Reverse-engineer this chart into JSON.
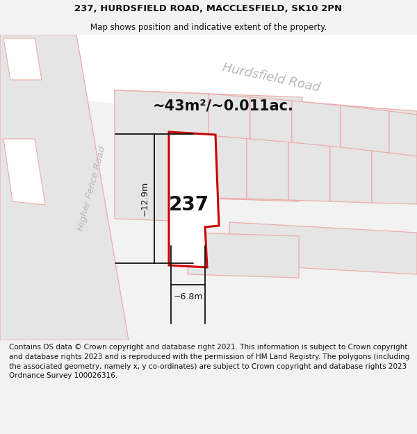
{
  "title_line1": "237, HURDSFIELD ROAD, MACCLESFIELD, SK10 2PN",
  "title_line2": "Map shows position and indicative extent of the property.",
  "area_text": "~43m²/~0.011ac.",
  "property_number": "237",
  "dim_height": "~12.9m",
  "dim_width": "~6.8m",
  "road_label1": "Hurdsfield Road",
  "road_label2": "Higher Fence Road",
  "footer_text": "Contains OS data © Crown copyright and database right 2021. This information is subject to Crown copyright and database rights 2023 and is reproduced with the permission of HM Land Registry. The polygons (including the associated geometry, namely x, y co-ordinates) are subject to Crown copyright and database rights 2023 Ordnance Survey 100026316.",
  "bg_color": "#f2f2f2",
  "map_bg": "#ffffff",
  "plot_outline_color": "#cc0000",
  "plot_fill_color": "#ffffff",
  "other_outline_color": "#f0aaaa",
  "other_fill_color": "#e5e5e5",
  "dim_color": "#111111",
  "road_label_color": "#b8b8b8",
  "title_color": "#111111",
  "footer_color": "#111111"
}
